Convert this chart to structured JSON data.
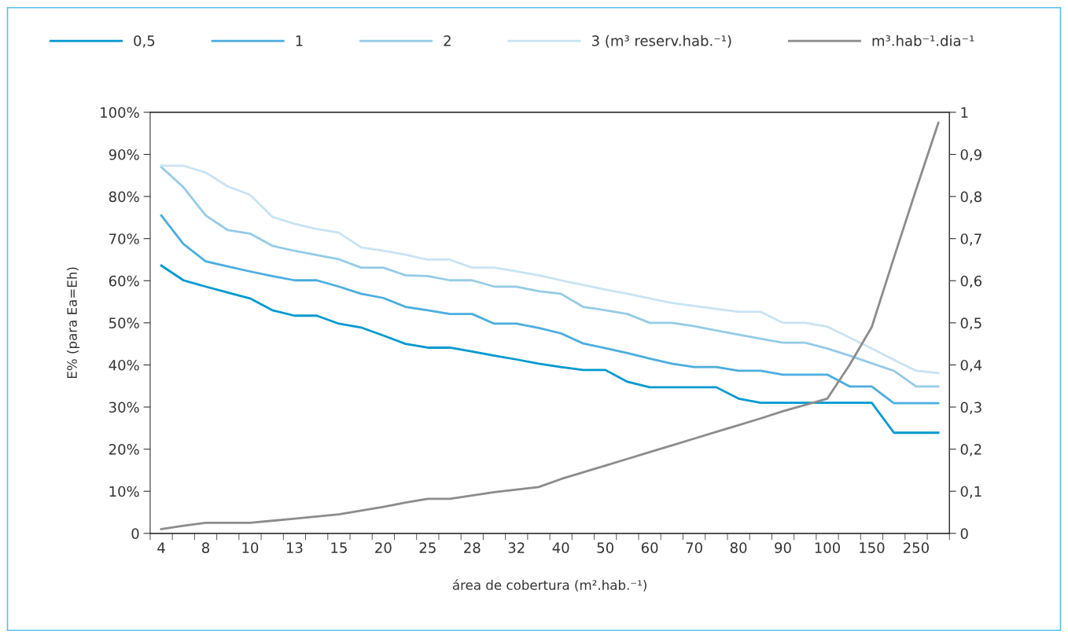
{
  "chart_data": {
    "type": "line",
    "categories": [
      "4",
      null,
      "8",
      null,
      "10",
      null,
      "13",
      null,
      "15",
      null,
      "20",
      null,
      "25",
      null,
      "28",
      null,
      "32",
      null,
      "40",
      null,
      "50",
      null,
      "60",
      null,
      "70",
      null,
      "80",
      null,
      "90",
      null,
      "100",
      null,
      "150",
      null,
      "250",
      null
    ],
    "series": [
      {
        "name": "0,5",
        "color": "#0099d0",
        "values": [
          63.6,
          60.1,
          58.6,
          57.2,
          55.8,
          53,
          51.7,
          51.7,
          49.8,
          48.9,
          47,
          45,
          44.1,
          44.1,
          43.2,
          42.2,
          41.3,
          40.3,
          39.5,
          38.8,
          38.8,
          36,
          34.7,
          34.7,
          34.7,
          34.7,
          32,
          31,
          31,
          31,
          31,
          31,
          31,
          23.9,
          23.9,
          23.9
        ]
      },
      {
        "name": "1",
        "color": "#4badde",
        "values": [
          75.5,
          68.7,
          64.6,
          63.4,
          62.2,
          61.1,
          60.1,
          60.1,
          58.6,
          56.9,
          55.9,
          53.8,
          53,
          52.1,
          52.1,
          49.8,
          49.8,
          48.8,
          47.5,
          45.1,
          44,
          42.8,
          41.5,
          40.3,
          39.5,
          39.5,
          38.6,
          38.6,
          37.7,
          37.7,
          37.7,
          34.9,
          34.9,
          30.9,
          30.9,
          30.9
        ]
      },
      {
        "name": "2",
        "color": "#94cbe6",
        "values": [
          87,
          82.2,
          75.5,
          72,
          71.2,
          68.3,
          67.1,
          66.1,
          65.1,
          63.1,
          63.1,
          61.3,
          61.1,
          60.1,
          60.1,
          58.6,
          58.6,
          57.5,
          56.9,
          53.8,
          53,
          52.1,
          50,
          50,
          49.2,
          48.2,
          47.2,
          46.2,
          45.3,
          45.3,
          43.9,
          42.2,
          40.4,
          38.6,
          34.9,
          34.9
        ]
      },
      {
        "name": "3 (m³ reserv.hab.⁻¹)",
        "color": "#c8e3f3",
        "values": [
          87.3,
          87.3,
          85.7,
          82.4,
          80.4,
          75.2,
          73.5,
          72.3,
          71.4,
          67.9,
          67.1,
          66.2,
          65,
          65,
          63.1,
          63.1,
          62.2,
          61.3,
          60.1,
          59,
          57.9,
          56.9,
          55.8,
          54.7,
          54,
          53.3,
          52.6,
          52.6,
          50,
          50,
          49.1,
          46.5,
          43.9,
          41.2,
          38.6,
          38.1
        ]
      },
      {
        "name": "m³.hab⁻¹.dia⁻¹",
        "color": "#8c8c8c",
        "axis": "y2",
        "values": [
          0.01,
          0.018,
          0.025,
          0.025,
          0.025,
          0.03,
          0.035,
          0.04,
          0.045,
          0.054,
          0.063,
          0.073,
          0.082,
          0.082,
          0.09,
          0.098,
          0.104,
          0.11,
          0.129,
          0.145,
          0.161,
          0.177,
          0.193,
          0.209,
          0.225,
          0.241,
          0.257,
          0.273,
          0.29,
          0.305,
          0.32,
          0.4,
          0.49,
          0.655,
          0.817,
          0.975
        ]
      }
    ],
    "xlabel": "área de cobertura (m².hab.⁻¹)",
    "ylabel": "E% (para Ea=Eh)",
    "ylim": [
      0,
      100
    ],
    "yticks": [
      0,
      {
        "value": 10,
        "label": "10%"
      },
      {
        "value": 20,
        "label": "20%"
      },
      {
        "value": 30,
        "label": "30%"
      },
      {
        "value": 40,
        "label": "40%"
      },
      {
        "value": 50,
        "label": "50%"
      },
      {
        "value": 60,
        "label": "60%"
      },
      {
        "value": 70,
        "label": "70%"
      },
      {
        "value": 80,
        "label": "80%"
      },
      {
        "value": 90,
        "label": "90%"
      },
      {
        "value": 100,
        "label": "100%"
      }
    ],
    "y2lim": [
      0,
      1
    ],
    "y2ticks": [
      0,
      {
        "value": 0.1,
        "label": "0,1"
      },
      {
        "value": 0.2,
        "label": "0,2"
      },
      {
        "value": 0.3,
        "label": "0,3"
      },
      {
        "value": 0.4,
        "label": "0,4"
      },
      {
        "value": 0.5,
        "label": "0,5"
      },
      {
        "value": 0.6,
        "label": "0,6"
      },
      {
        "value": 0.7,
        "label": "0,7"
      },
      {
        "value": 0.8,
        "label": "0,8"
      },
      {
        "value": 0.9,
        "label": "0,9"
      },
      1
    ],
    "legend": "top",
    "grid": false,
    "marker": "none",
    "line_style": "solid"
  }
}
